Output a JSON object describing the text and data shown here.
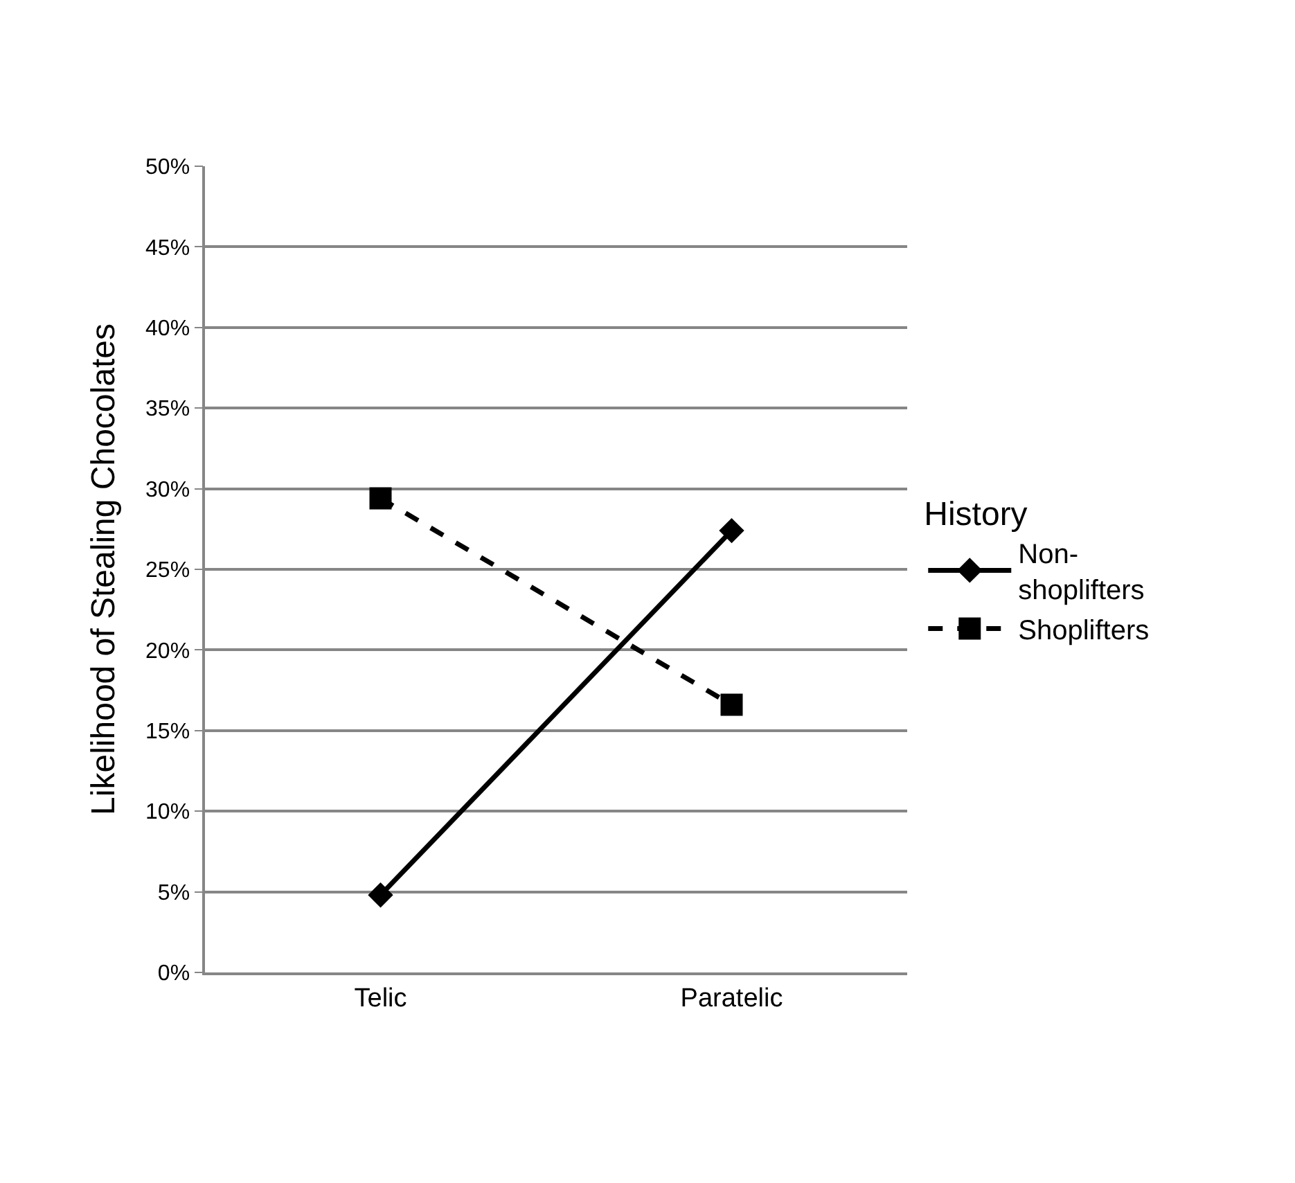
{
  "chart_data": {
    "type": "line",
    "ylabel": "Likelihood of Stealing Chocolates",
    "legend_title": "History",
    "categories": [
      "Telic",
      "Paratelic"
    ],
    "series": [
      {
        "name": "Non-shoplifters",
        "color": "#000000",
        "values": [
          4.8,
          27.4
        ],
        "marker": "diamond",
        "line_style": "solid"
      },
      {
        "name": "Shoplifters",
        "color": "#000000",
        "values": [
          29.4,
          16.6
        ],
        "marker": "square",
        "line_style": "dashed"
      }
    ],
    "ylim": [
      0,
      50
    ],
    "yticks": [
      {
        "value": 0,
        "label": "0%"
      },
      {
        "value": 5,
        "label": "5%"
      },
      {
        "value": 10,
        "label": "10%"
      },
      {
        "value": 15,
        "label": "15%"
      },
      {
        "value": 20,
        "label": "20%"
      },
      {
        "value": 25,
        "label": "25%"
      },
      {
        "value": 30,
        "label": "30%"
      },
      {
        "value": 35,
        "label": "35%"
      },
      {
        "value": 40,
        "label": "40%"
      },
      {
        "value": 45,
        "label": "45%"
      },
      {
        "value": 50,
        "label": "50%"
      }
    ],
    "grid": "y",
    "legend": "right"
  }
}
